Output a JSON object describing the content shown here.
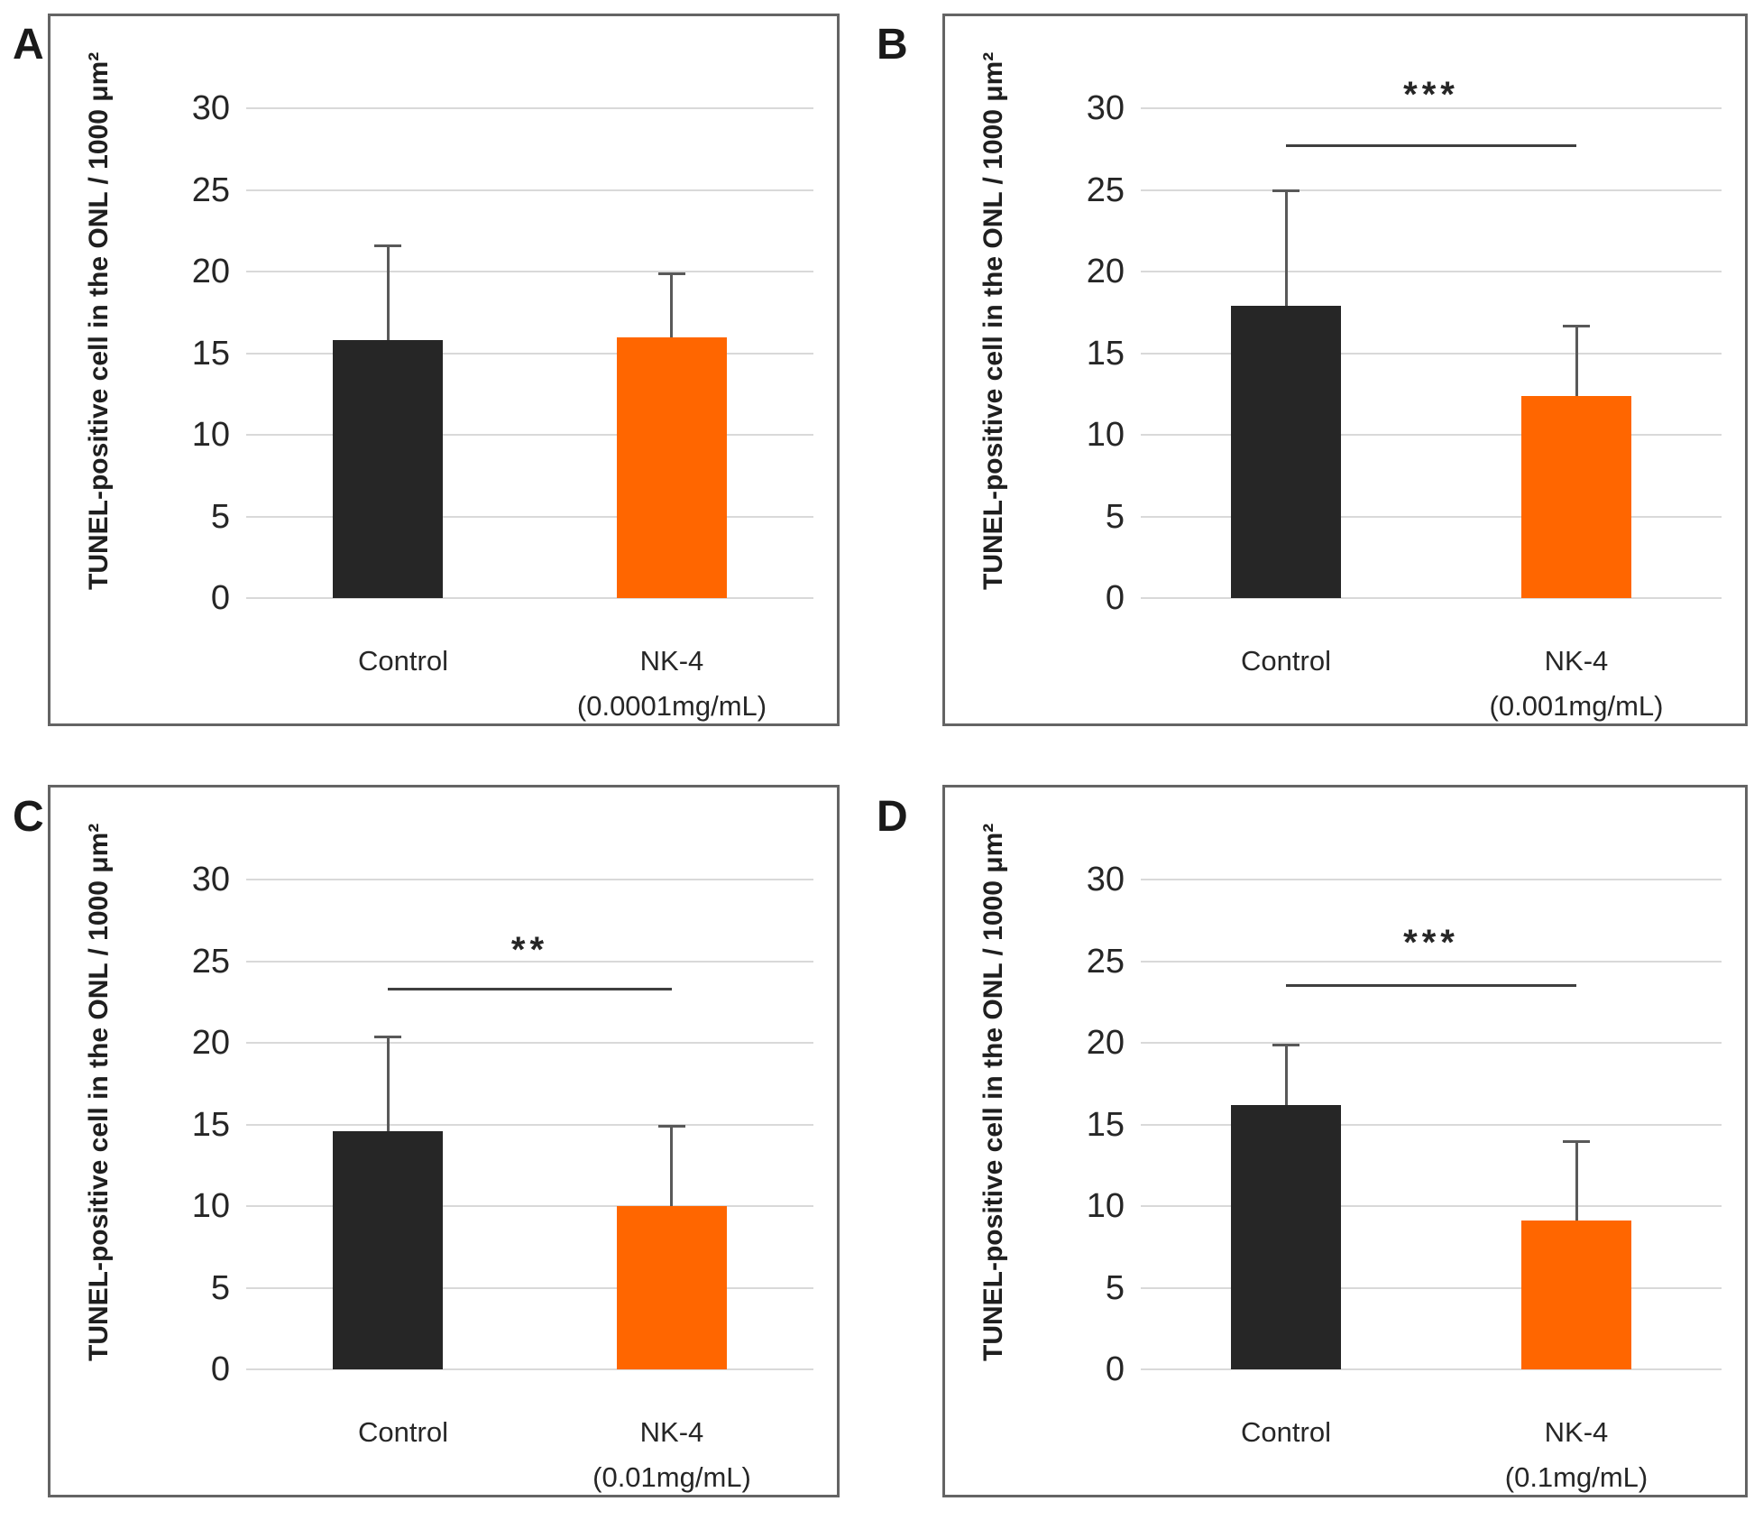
{
  "figure": {
    "panel_letters": [
      "A",
      "B",
      "C",
      "D"
    ],
    "colors": {
      "control_bar": "#262626",
      "nk4_bar": "#FF6600",
      "gridline": "#d9d9d9",
      "error_bar": "#595959",
      "significance": "#3f3f3f",
      "panel_border": "#646464"
    }
  },
  "chart_data": [
    {
      "type": "bar",
      "panel_label": "A",
      "ylabel": "TUNEL-positive cell in the ONL / 1000 μm²",
      "yticks": [
        0,
        5,
        10,
        15,
        20,
        25,
        30
      ],
      "ylim": [
        0,
        34
      ],
      "grid": true,
      "categories": [
        [
          "Control",
          ""
        ],
        [
          "NK-4",
          "(0.0001mg/mL)"
        ]
      ],
      "series": [
        {
          "name": "Control",
          "value": 15.8,
          "error_top": 21.6,
          "color": "#262626"
        },
        {
          "name": "NK-4 (0.0001mg/mL)",
          "value": 16.0,
          "error_top": 19.9,
          "color": "#FF6600"
        }
      ],
      "significance": null
    },
    {
      "type": "bar",
      "panel_label": "B",
      "ylabel": "TUNEL-positive cell in the ONL / 1000 μm²",
      "yticks": [
        0,
        5,
        10,
        15,
        20,
        25,
        30
      ],
      "ylim": [
        0,
        34
      ],
      "grid": true,
      "categories": [
        [
          "Control",
          ""
        ],
        [
          "NK-4",
          "(0.001mg/mL)"
        ]
      ],
      "series": [
        {
          "name": "Control",
          "value": 17.9,
          "error_top": 25.0,
          "color": "#262626"
        },
        {
          "name": "NK-4 (0.001mg/mL)",
          "value": 12.4,
          "error_top": 16.7,
          "color": "#FF6600"
        }
      ],
      "significance": {
        "label": "***",
        "line_y": 27.8,
        "label_y": 31.1
      }
    },
    {
      "type": "bar",
      "panel_label": "C",
      "ylabel": "TUNEL-positive cell in the ONL / 1000 μm²",
      "yticks": [
        0,
        5,
        10,
        15,
        20,
        25,
        30
      ],
      "ylim": [
        0,
        34
      ],
      "grid": true,
      "categories": [
        [
          "Control",
          ""
        ],
        [
          "NK-4",
          "(0.01mg/mL)"
        ]
      ],
      "series": [
        {
          "name": "Control",
          "value": 14.6,
          "error_top": 20.4,
          "color": "#262626"
        },
        {
          "name": "NK-4 (0.01mg/mL)",
          "value": 10.0,
          "error_top": 14.9,
          "color": "#FF6600"
        }
      ],
      "significance": {
        "label": "**",
        "line_y": 23.4,
        "label_y": 26.0
      }
    },
    {
      "type": "bar",
      "panel_label": "D",
      "ylabel": "TUNEL-positive cell in the ONL / 1000 μm²",
      "yticks": [
        0,
        5,
        10,
        15,
        20,
        25,
        30
      ],
      "ylim": [
        0,
        34
      ],
      "grid": true,
      "categories": [
        [
          "Control",
          ""
        ],
        [
          "NK-4",
          "(0.1mg/mL)"
        ]
      ],
      "series": [
        {
          "name": "Control",
          "value": 16.2,
          "error_top": 19.9,
          "color": "#262626"
        },
        {
          "name": "NK-4 (0.1mg/mL)",
          "value": 9.1,
          "error_top": 14.0,
          "color": "#FF6600"
        }
      ],
      "significance": {
        "label": "***",
        "line_y": 23.6,
        "label_y": 26.4
      }
    }
  ]
}
